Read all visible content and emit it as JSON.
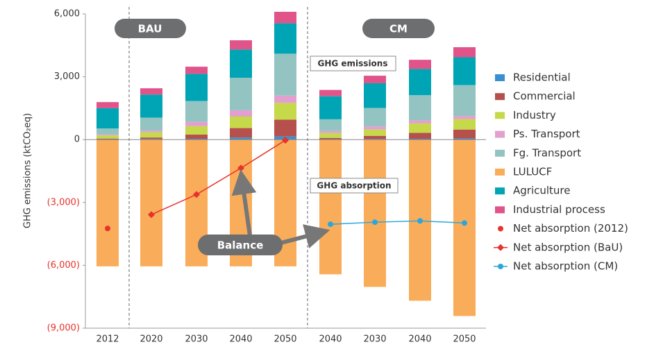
{
  "chart_data": {
    "type": "bar",
    "stacked": true,
    "y_label": "GHG emissions (ktCO₂eq)",
    "categories": [
      "2012",
      "2020",
      "2030",
      "2040",
      "2050",
      "2040",
      "2030",
      "2040",
      "2050"
    ],
    "ylim": [
      -9000,
      6000
    ],
    "yticks": [
      {
        "value": 6000,
        "label": "6,000"
      },
      {
        "value": 3000,
        "label": "3,000"
      },
      0,
      {
        "value": -3000,
        "label": "(3,000)"
      },
      {
        "value": -6000,
        "label": "(6,000)"
      },
      {
        "value": -9000,
        "label": "(9,000)"
      }
    ],
    "negative_tick_color": "#e8322b",
    "annotations": {
      "bau": "BAU",
      "cm": "CM",
      "emissions": "GHG emissions",
      "absorption": "GHG absorption",
      "balance": "Balance"
    },
    "series": [
      {
        "name": "Residential",
        "color": "#3b8fd0",
        "values": [
          20,
          30,
          40,
          100,
          150,
          20,
          30,
          40,
          60
        ]
      },
      {
        "name": "Commercial",
        "color": "#b5504d",
        "values": [
          30,
          70,
          200,
          450,
          800,
          60,
          150,
          280,
          420
        ]
      },
      {
        "name": "Industry",
        "color": "#c5d94a",
        "values": [
          150,
          250,
          400,
          550,
          800,
          230,
          300,
          450,
          500
        ]
      },
      {
        "name": "Ps. Transport",
        "color": "#e3a0cf",
        "values": [
          50,
          80,
          200,
          300,
          350,
          100,
          150,
          150,
          150
        ]
      },
      {
        "name": "Fg. Transport",
        "color": "#93c4c2",
        "values": [
          280,
          620,
          1000,
          1550,
          2000,
          560,
          880,
          1200,
          1470
        ]
      },
      {
        "name": "LULUCF",
        "color": "#f9ad5a",
        "values": [
          -6050,
          -6050,
          -6050,
          -6050,
          -6050,
          -6430,
          -7030,
          -7690,
          -8420
        ]
      },
      {
        "name": "Agriculture",
        "color": "#00a5b5",
        "values": [
          970,
          1100,
          1300,
          1350,
          1450,
          1100,
          1180,
          1250,
          1330
        ]
      },
      {
        "name": "Industrial process",
        "color": "#e0548a",
        "values": [
          290,
          300,
          340,
          440,
          550,
          300,
          360,
          440,
          480
        ]
      },
      {
        "name": "Net absorption (2012)",
        "type": "scatter",
        "color": "#e8322b",
        "values": [
          -4240,
          null,
          null,
          null,
          null,
          null,
          null,
          null,
          null
        ]
      },
      {
        "name": "Net absorption (BaU)",
        "type": "line",
        "marker": "diamond",
        "color": "#e8322b",
        "values": [
          null,
          -3580,
          -2620,
          -1360,
          -30,
          null,
          null,
          null,
          null
        ]
      },
      {
        "name": "Net absorption (CM)",
        "type": "line",
        "marker": "circle",
        "color": "#2ba6dc",
        "values": [
          null,
          null,
          null,
          null,
          null,
          -4040,
          -3940,
          -3880,
          -3980
        ]
      }
    ]
  }
}
